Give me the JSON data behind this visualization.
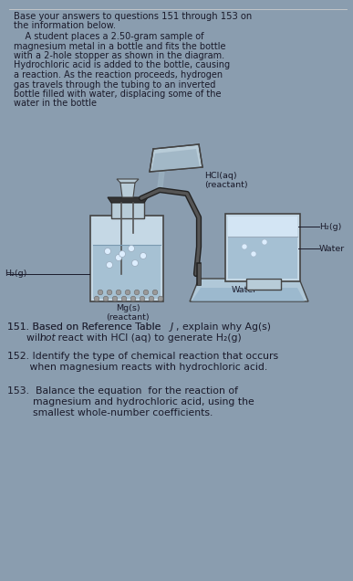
{
  "bg_color": "#8a9daf",
  "text_color": "#1a1a2a",
  "header_line1": "Base your answers to questions 151 through 153 on",
  "header_line2": "the information below.",
  "para_lines": [
    "    A student places a 2.50-gram sample of",
    "magnesium metal in a bottle and fits the bottle",
    "with a 2-hole stopper as shown in the diagram.",
    "Hydrochloric acid is added to the bottle, causing",
    "a reaction. As the reaction proceeds, hydrogen",
    "gas travels through the tubing to an inverted",
    "bottle filled with water, displacing some of the",
    "water in the bottle"
  ],
  "label_HCl1": "HCl(aq)",
  "label_HCl2": "(reactant)",
  "label_H2g_right": "H",
  "label_H2g_right_sub": "2",
  "label_H2g_right_end": "(g)",
  "label_water_right": "Water",
  "label_H2g_left": "H",
  "label_H2g_left_sub": "2",
  "label_H2g_left_end": "(g)",
  "label_Mgs1": "Mg(s)",
  "label_Mgs2": "(reactant)",
  "label_water_bottom": "Water",
  "q151_pre": "151. Based on Reference Table ",
  "q151_italic": "J",
  "q151_post": ", explain why Ag(s)",
  "q151_line2": "      will ",
  "q151_not": "not",
  "q151_line2end": " react with HCl (aq) to generate H",
  "q151_sub": "2",
  "q151_end": "(g)",
  "q152_line1": "152. Identify the type of chemical reaction that occurs",
  "q152_line2": "       when magnesium reacts with hydrochloric acid.",
  "q153_line1": "153.  Balance the equation  for the reaction of",
  "q153_line2": "        magnesium and hydrochloric acid, using the",
  "q153_line3": "        smallest whole-number coefficients."
}
